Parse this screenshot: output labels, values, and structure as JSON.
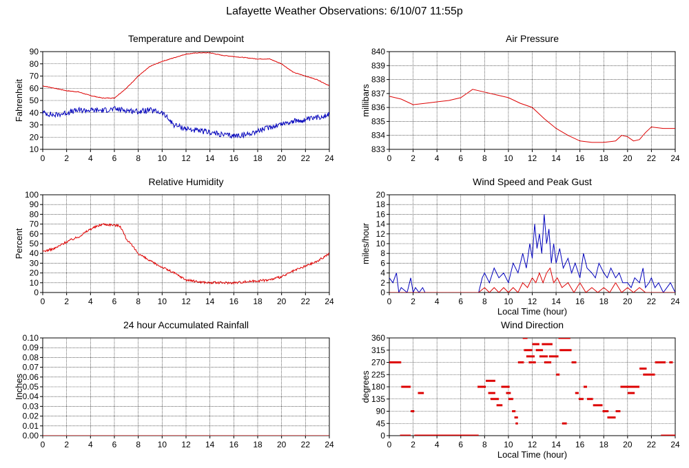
{
  "title": "Lafayette Weather Observations: 6/10/07 11:55p",
  "colors": {
    "red": "#dd0000",
    "blue": "#0000bb",
    "grid": "#000000",
    "frame": "#000000"
  },
  "chart_data": [
    {
      "id": "temperature",
      "type": "line",
      "title": "Temperature and Dewpoint",
      "xlabel": "",
      "ylabel": "Fahrenheit",
      "xlim": [
        0,
        24
      ],
      "ylim": [
        10,
        90
      ],
      "xticks": [
        0,
        2,
        4,
        6,
        8,
        10,
        12,
        14,
        16,
        18,
        20,
        22,
        24
      ],
      "yticks": [
        10,
        20,
        30,
        40,
        50,
        60,
        70,
        80,
        90
      ],
      "grid": true,
      "series": [
        {
          "color": "#dd0000",
          "noise": 0.25,
          "x": [
            0,
            1,
            2,
            3,
            4,
            5,
            6,
            7,
            8,
            9,
            10,
            11,
            12,
            13,
            14,
            15,
            16,
            17,
            18,
            19,
            20,
            21,
            22,
            23,
            24
          ],
          "y": [
            62,
            60,
            58,
            57,
            54,
            52,
            52,
            60,
            70,
            78,
            82,
            85,
            88,
            89,
            89,
            87,
            86,
            85,
            84,
            84,
            80,
            73,
            70,
            67,
            62
          ]
        },
        {
          "color": "#0000bb",
          "noise": 2.2,
          "x": [
            0,
            1,
            2,
            3,
            4,
            5,
            6,
            7,
            8,
            9,
            10,
            11,
            12,
            13,
            14,
            15,
            16,
            17,
            18,
            19,
            20,
            21,
            22,
            23,
            24
          ],
          "y": [
            40,
            38,
            40,
            42,
            42,
            42,
            43,
            42,
            41,
            42,
            40,
            30,
            27,
            25,
            24,
            22,
            21,
            22,
            25,
            28,
            31,
            33,
            34,
            36,
            39
          ]
        }
      ]
    },
    {
      "id": "pressure",
      "type": "line",
      "title": "Air Pressure",
      "xlabel": "",
      "ylabel": "millibars",
      "xlim": [
        0,
        24
      ],
      "ylim": [
        833,
        840
      ],
      "xticks": [
        0,
        2,
        4,
        6,
        8,
        10,
        12,
        14,
        16,
        18,
        20,
        22,
        24
      ],
      "yticks": [
        833,
        834,
        835,
        836,
        837,
        838,
        839,
        840
      ],
      "grid": true,
      "series": [
        {
          "color": "#dd0000",
          "noise": 0,
          "x": [
            0,
            1,
            2,
            3,
            4,
            5,
            6,
            6.5,
            7,
            8,
            9,
            10,
            11,
            12,
            13,
            14,
            15,
            16,
            17,
            18,
            19,
            19.5,
            20,
            20.5,
            21,
            21.5,
            22,
            23,
            24
          ],
          "y": [
            836.8,
            836.6,
            836.2,
            836.3,
            836.4,
            836.5,
            836.7,
            837.0,
            837.3,
            837.1,
            836.9,
            836.7,
            836.3,
            836.0,
            835.2,
            834.5,
            834.0,
            833.6,
            833.5,
            833.5,
            833.6,
            834.0,
            833.9,
            833.6,
            833.7,
            834.2,
            834.6,
            834.5,
            834.5
          ]
        }
      ]
    },
    {
      "id": "humidity",
      "type": "line",
      "title": "Relative Humidity",
      "xlabel": "",
      "ylabel": "Percent",
      "xlim": [
        0,
        24
      ],
      "ylim": [
        0,
        100
      ],
      "xticks": [
        0,
        2,
        4,
        6,
        8,
        10,
        12,
        14,
        16,
        18,
        20,
        22,
        24
      ],
      "yticks": [
        0,
        10,
        20,
        30,
        40,
        50,
        60,
        70,
        80,
        90,
        100
      ],
      "grid": true,
      "series": [
        {
          "color": "#dd0000",
          "noise": 1.2,
          "x": [
            0,
            1,
            2,
            3,
            4,
            5,
            6,
            6.5,
            7,
            8,
            9,
            10,
            11,
            12,
            13,
            14,
            15,
            16,
            17,
            18,
            19,
            20,
            21,
            22,
            23,
            24
          ],
          "y": [
            42,
            45,
            52,
            57,
            65,
            70,
            69,
            68,
            55,
            40,
            32,
            26,
            20,
            13,
            11,
            10,
            10,
            10,
            11,
            12,
            13,
            16,
            22,
            27,
            32,
            40
          ]
        }
      ]
    },
    {
      "id": "wind",
      "type": "line",
      "title": "Wind Speed and Peak Gust",
      "xlabel": "Local Time (hour)",
      "ylabel": "miles/hour",
      "xlim": [
        0,
        24
      ],
      "ylim": [
        0,
        20
      ],
      "xticks": [
        0,
        2,
        4,
        6,
        8,
        10,
        12,
        14,
        16,
        18,
        20,
        22,
        24
      ],
      "yticks": [
        0,
        2,
        4,
        6,
        8,
        10,
        12,
        14,
        16,
        18,
        20
      ],
      "grid": true,
      "series": [
        {
          "color": "#0000bb",
          "noise": 0,
          "x": [
            0,
            0.3,
            0.6,
            0.8,
            1,
            1.5,
            1.8,
            2,
            2.2,
            2.5,
            2.8,
            3,
            3.2,
            7.5,
            7.8,
            8,
            8.4,
            8.8,
            9.2,
            9.6,
            10,
            10.4,
            10.8,
            11.2,
            11.5,
            11.8,
            12,
            12.2,
            12.4,
            12.6,
            12.8,
            13,
            13.2,
            13.4,
            13.6,
            13.8,
            14,
            14.3,
            14.6,
            15,
            15.3,
            15.6,
            16,
            16.3,
            16.6,
            17,
            17.3,
            17.6,
            18,
            18.3,
            18.6,
            19,
            19.3,
            19.6,
            20,
            20.3,
            20.6,
            21,
            21.3,
            21.5,
            21.8,
            22,
            22.3,
            22.6,
            23,
            23.3,
            23.6,
            24
          ],
          "y": [
            3,
            2,
            4,
            0,
            1,
            0,
            3,
            0,
            1,
            0,
            1,
            0,
            0,
            0,
            3,
            4,
            2,
            5,
            3,
            4,
            2,
            6,
            4,
            8,
            5,
            10,
            7,
            14,
            9,
            12,
            8,
            16,
            10,
            13,
            6,
            10,
            6,
            9,
            5,
            7,
            4,
            6,
            3,
            8,
            5,
            4,
            3,
            6,
            4,
            3,
            5,
            3,
            4,
            2,
            2,
            1,
            3,
            2,
            5,
            1,
            2,
            3,
            1,
            2,
            0,
            1,
            2,
            0
          ]
        },
        {
          "color": "#dd0000",
          "noise": 0,
          "x": [
            0,
            7.5,
            8,
            8.4,
            8.8,
            9.2,
            9.6,
            10,
            10.4,
            10.8,
            11.2,
            11.6,
            12,
            12.3,
            12.6,
            12.9,
            13.2,
            13.5,
            13.8,
            14.1,
            14.5,
            15,
            15.5,
            16,
            16.5,
            17,
            17.5,
            18,
            18.5,
            19,
            19.5,
            20,
            20.5,
            21,
            21.5,
            22,
            24
          ],
          "y": [
            0,
            0,
            1,
            0,
            1,
            0,
            1,
            0,
            1,
            0,
            2,
            1,
            3,
            2,
            4,
            2,
            4,
            5,
            2,
            3,
            1,
            2,
            0,
            2,
            0,
            1,
            0,
            1,
            0,
            2,
            0,
            1,
            0,
            1,
            0,
            0,
            0
          ]
        }
      ]
    },
    {
      "id": "rainfall",
      "type": "line",
      "title": "24 hour Accumulated Rainfall",
      "xlabel": "",
      "ylabel": "Inches",
      "xlim": [
        0,
        24
      ],
      "ylim": [
        0,
        0.1
      ],
      "xticks": [
        0,
        2,
        4,
        6,
        8,
        10,
        12,
        14,
        16,
        18,
        20,
        22,
        24
      ],
      "yticks": [
        "0.00",
        "0.01",
        "0.02",
        "0.03",
        "0.04",
        "0.05",
        "0.06",
        "0.07",
        "0.08",
        "0.09",
        "0.10"
      ],
      "grid": true,
      "series": [
        {
          "color": "#dd0000",
          "noise": 0,
          "x": [
            0,
            24
          ],
          "y": [
            0,
            0
          ]
        }
      ]
    },
    {
      "id": "direction",
      "type": "scatter",
      "title": "Wind Direction",
      "xlabel": "Local Time (hour)",
      "ylabel": "degrees",
      "xlim": [
        0,
        24
      ],
      "ylim": [
        0,
        360
      ],
      "xticks": [
        0,
        2,
        4,
        6,
        8,
        10,
        12,
        14,
        16,
        18,
        20,
        22,
        24
      ],
      "yticks": [
        0,
        45,
        90,
        135,
        180,
        225,
        270,
        315,
        360
      ],
      "grid": true,
      "series": [
        {
          "color": "#dd0000",
          "noise": 0,
          "segments": [
            [
              0.0,
              1.0,
              270
            ],
            [
              1.0,
              1.8,
              180
            ],
            [
              0.9,
              1.8,
              0
            ],
            [
              1.8,
              2.1,
              90
            ],
            [
              2.1,
              7.5,
              0
            ],
            [
              2.4,
              2.9,
              157
            ],
            [
              7.4,
              8.1,
              180
            ],
            [
              8.1,
              8.9,
              202
            ],
            [
              8.3,
              8.9,
              157
            ],
            [
              8.5,
              9.2,
              135
            ],
            [
              9.0,
              9.5,
              112
            ],
            [
              9.4,
              10.1,
              180
            ],
            [
              9.8,
              10.2,
              157
            ],
            [
              10.0,
              10.4,
              135
            ],
            [
              10.3,
              10.6,
              90
            ],
            [
              10.5,
              10.8,
              67
            ],
            [
              10.6,
              10.8,
              45
            ],
            [
              10.8,
              11.3,
              270
            ],
            [
              11.2,
              11.6,
              360
            ],
            [
              11.3,
              12.0,
              315
            ],
            [
              11.5,
              12.2,
              292
            ],
            [
              11.7,
              12.3,
              270
            ],
            [
              12.0,
              12.6,
              337
            ],
            [
              12.3,
              12.9,
              315
            ],
            [
              12.6,
              13.3,
              292
            ],
            [
              12.8,
              13.7,
              337
            ],
            [
              13.0,
              13.6,
              270
            ],
            [
              13.4,
              14.2,
              292
            ],
            [
              14.0,
              14.3,
              225
            ],
            [
              14.2,
              15.2,
              360
            ],
            [
              14.3,
              15.3,
              315
            ],
            [
              14.5,
              14.9,
              45
            ],
            [
              15.3,
              15.7,
              270
            ],
            [
              15.6,
              15.9,
              157
            ],
            [
              15.9,
              16.3,
              135
            ],
            [
              16.3,
              16.6,
              180
            ],
            [
              16.6,
              17.1,
              135
            ],
            [
              17.1,
              17.9,
              112
            ],
            [
              17.9,
              18.4,
              90
            ],
            [
              18.3,
              19.0,
              67
            ],
            [
              19.0,
              19.4,
              90
            ],
            [
              19.4,
              21.0,
              180
            ],
            [
              20.0,
              20.6,
              157
            ],
            [
              21.0,
              21.6,
              247
            ],
            [
              21.3,
              22.3,
              225
            ],
            [
              22.3,
              23.2,
              270
            ],
            [
              22.8,
              24.0,
              0
            ],
            [
              23.5,
              23.8,
              270
            ]
          ]
        }
      ]
    }
  ]
}
